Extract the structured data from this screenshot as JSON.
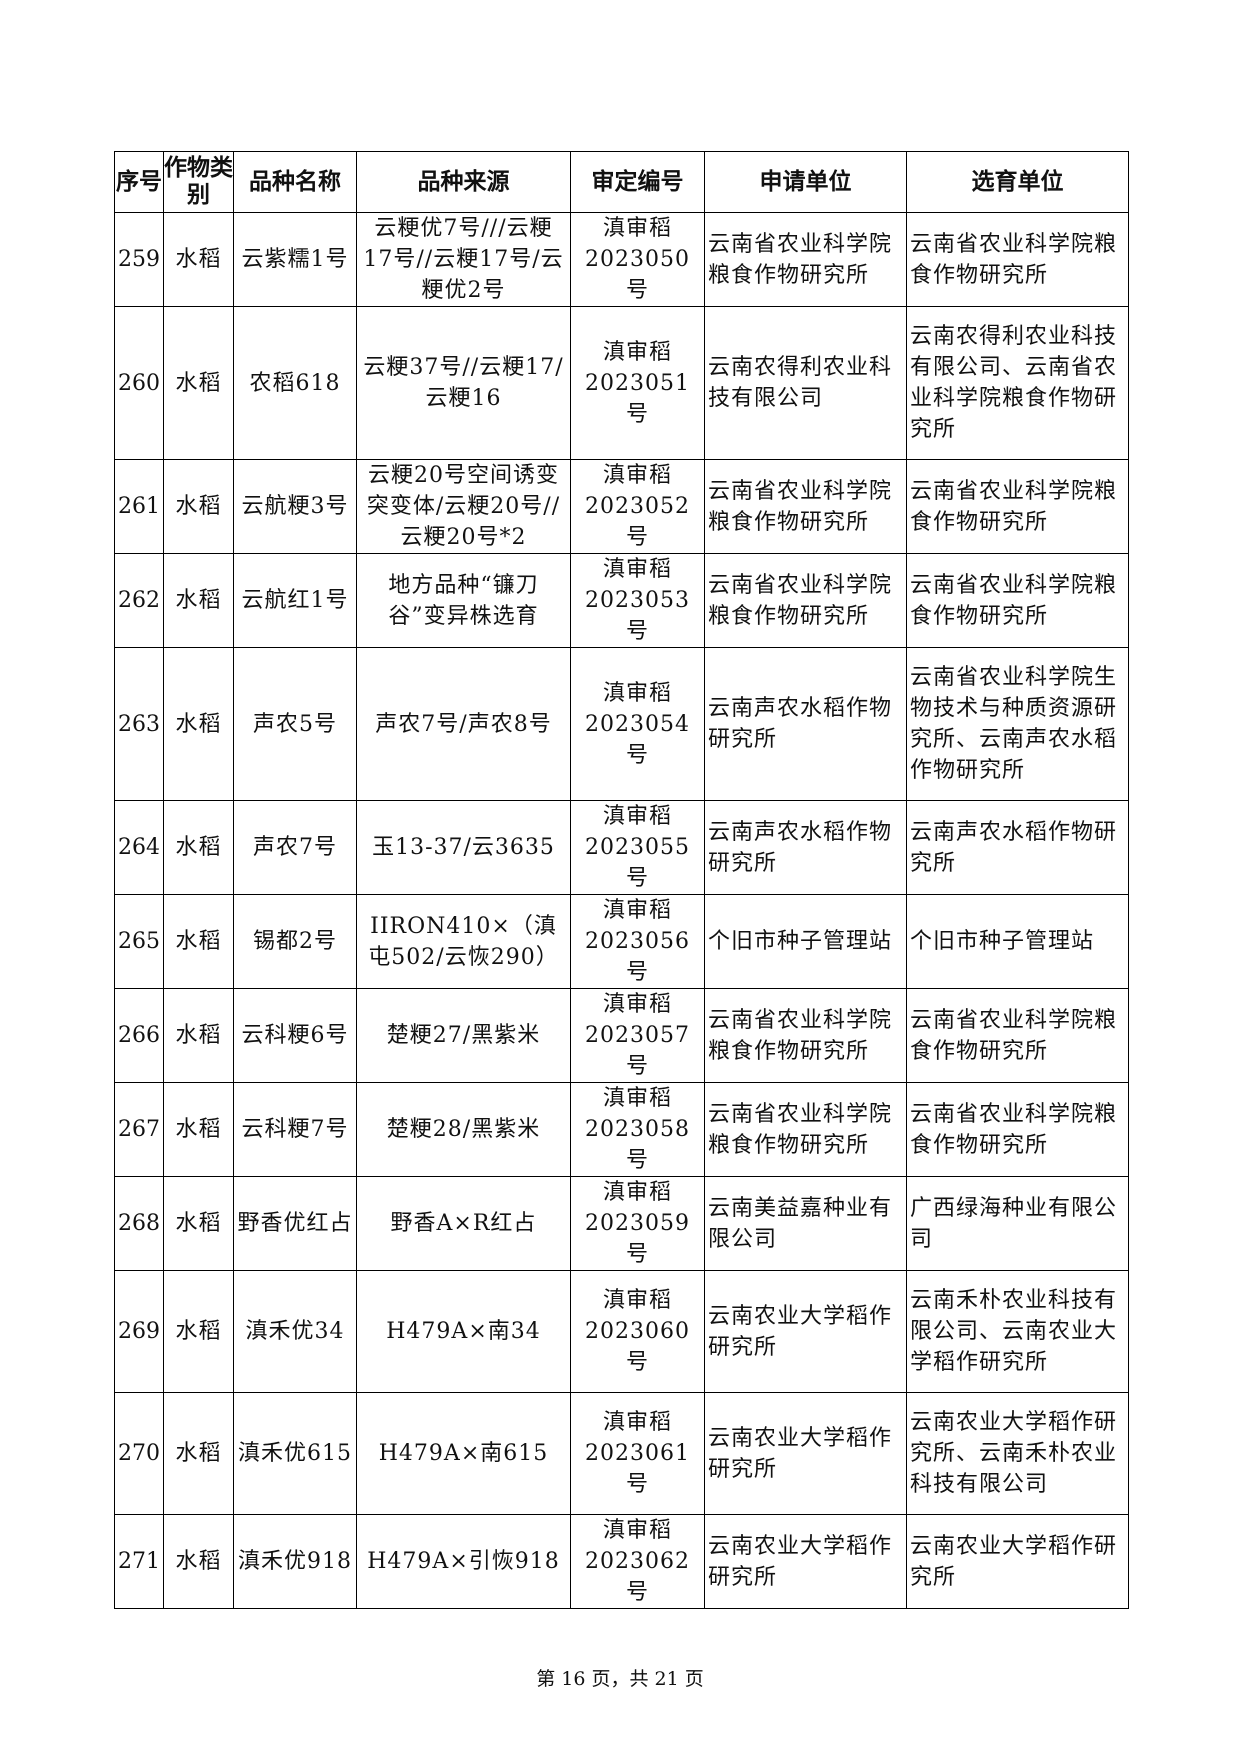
{
  "headers": [
    "序号",
    "作物类别",
    "品种名称",
    "品种来源",
    "审定编号",
    "申请单位",
    "选育单位"
  ],
  "rows": [
    [
      "259",
      "水稻",
      "云紫糯1号",
      "云粳优7号///云粳17号//云粳17号/云粳优2号",
      "滇审稻2023050号",
      "云南省农业科学院粮食作物研究所",
      "云南省农业科学院粮食作物研究所"
    ],
    [
      "260",
      "水稻",
      "农稻618",
      "云粳37号//云粳17/云粳16",
      "滇审稻2023051号",
      "云南农得利农业科技有限公司",
      "云南农得利农业科技有限公司、云南省农业科学院粮食作物研究所"
    ],
    [
      "261",
      "水稻",
      "云航粳3号",
      "云粳20号空间诱变突变体/云粳20号//云粳20号*2",
      "滇审稻2023052号",
      "云南省农业科学院粮食作物研究所",
      "云南省农业科学院粮食作物研究所"
    ],
    [
      "262",
      "水稻",
      "云航红1号",
      "地方品种“镰刀谷”变异株选育",
      "滇审稻2023053号",
      "云南省农业科学院粮食作物研究所",
      "云南省农业科学院粮食作物研究所"
    ],
    [
      "263",
      "水稻",
      "声农5号",
      "声农7号/声农8号",
      "滇审稻2023054号",
      "云南声农水稻作物研究所",
      "云南省农业科学院生物技术与种质资源研究所、云南声农水稻作物研究所"
    ],
    [
      "264",
      "水稻",
      "声农7号",
      "玉13-37/云3635",
      "滇审稻2023055号",
      "云南声农水稻作物研究所",
      "云南声农水稻作物研究所"
    ],
    [
      "265",
      "水稻",
      "锡都2号",
      "IIRON410×（滇屯502/云恢290）",
      "滇审稻2023056号",
      "个旧市种子管理站",
      "个旧市种子管理站"
    ],
    [
      "266",
      "水稻",
      "云科粳6号",
      "楚粳27/黑紫米",
      "滇审稻2023057号",
      "云南省农业科学院粮食作物研究所",
      "云南省农业科学院粮食作物研究所"
    ],
    [
      "267",
      "水稻",
      "云科粳7号",
      "楚粳28/黑紫米",
      "滇审稻2023058号",
      "云南省农业科学院粮食作物研究所",
      "云南省农业科学院粮食作物研究所"
    ],
    [
      "268",
      "水稻",
      "野香优红占",
      "野香A×R红占",
      "滇审稻2023059号",
      "云南美益嘉种业有限公司",
      "广西绿海种业有限公司"
    ],
    [
      "269",
      "水稻",
      "滇禾优34",
      "H479A×南34",
      "滇审稻2023060号",
      "云南农业大学稻作研究所",
      "云南禾朴农业科技有限公司、云南农业大学稻作研究所"
    ],
    [
      "270",
      "水稻",
      "滇禾优615",
      "H479A×南615",
      "滇审稻2023061号",
      "云南农业大学稻作研究所",
      "云南农业大学稻作研究所、云南禾朴农业科技有限公司"
    ],
    [
      "271",
      "水稻",
      "滇禾优918",
      "H479A×引恢918",
      "滇审稻2023062号",
      "云南农业大学稻作研究所",
      "云南农业大学稻作研究所"
    ]
  ],
  "footer": "第 16 页，共 21 页"
}
